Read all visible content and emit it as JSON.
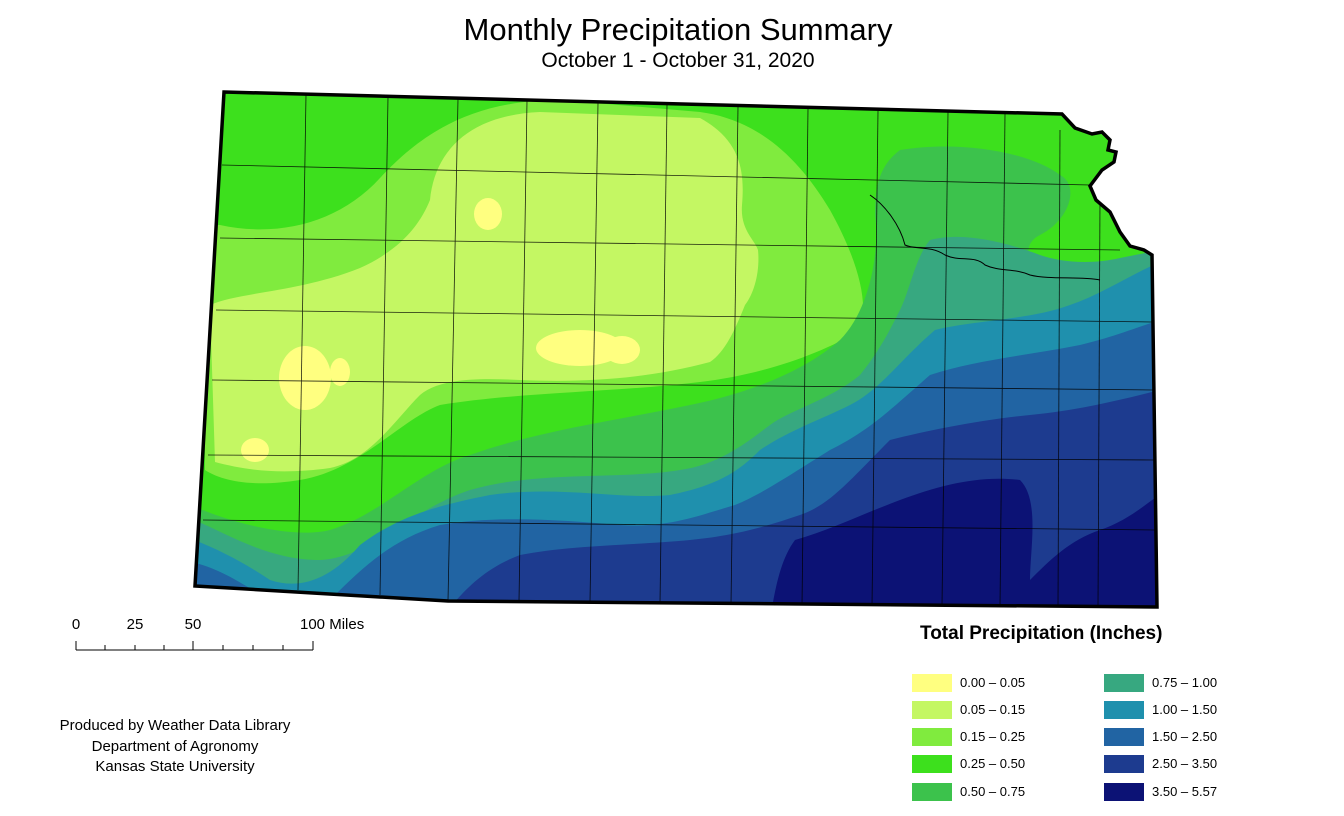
{
  "title": "Monthly Precipitation Summary",
  "subtitle": "October 1 - October 31, 2020",
  "map": {
    "region": "Kansas",
    "variable": "Total precipitation",
    "period": "October 2020"
  },
  "scale_bar": {
    "labels": [
      "0",
      "25",
      "50",
      "100 Miles"
    ]
  },
  "legend": {
    "title": "Total Precipitation (Inches)",
    "classes": [
      {
        "label": "0.00 – 0.05",
        "color": "#ffff80"
      },
      {
        "label": "0.05 – 0.15",
        "color": "#c4f763"
      },
      {
        "label": "0.15 – 0.25",
        "color": "#80eb3e"
      },
      {
        "label": "0.25 – 0.50",
        "color": "#3de01d"
      },
      {
        "label": "0.50 – 0.75",
        "color": "#3cc24c"
      },
      {
        "label": "0.75 – 1.00",
        "color": "#37a880"
      },
      {
        "label": "1.00 – 1.50",
        "color": "#1f90ad"
      },
      {
        "label": "1.50 – 2.50",
        "color": "#2164a3"
      },
      {
        "label": "2.50 – 3.50",
        "color": "#1d3b8f"
      },
      {
        "label": "3.50 – 5.57",
        "color": "#0c1275"
      }
    ]
  },
  "credits": {
    "line1": "Produced by Weather Data Library",
    "line2": "Department of Agronomy",
    "line3": "Kansas State University"
  }
}
